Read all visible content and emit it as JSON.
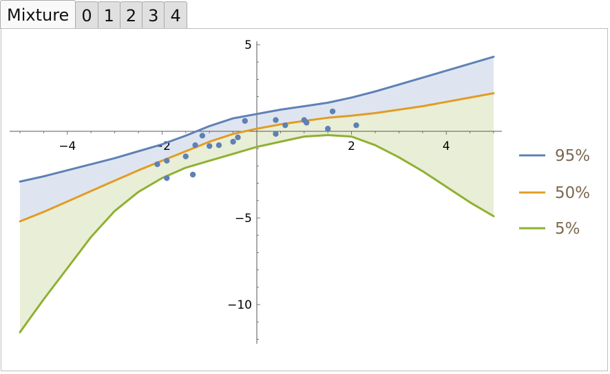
{
  "tabs": [
    {
      "label": "Mixture",
      "active": true
    },
    {
      "label": "0",
      "active": false
    },
    {
      "label": "1",
      "active": false
    },
    {
      "label": "2",
      "active": false
    },
    {
      "label": "3",
      "active": false
    },
    {
      "label": "4",
      "active": false
    }
  ],
  "chart_data": {
    "type": "line",
    "xlim": [
      -5,
      5
    ],
    "ylim": [
      -12,
      5
    ],
    "x_ticks": [
      -4,
      -2,
      2,
      4
    ],
    "y_ticks": [
      5,
      -5,
      -10
    ],
    "x_tick_labels": [
      "−4",
      "−2",
      "2",
      "4"
    ],
    "y_tick_labels": [
      "5",
      "−5",
      "−10"
    ],
    "grid": false,
    "legend_position": "right",
    "x": [
      -5,
      -4.5,
      -4,
      -3.5,
      -3,
      -2.5,
      -2,
      -1.5,
      -1,
      -0.5,
      0,
      0.5,
      1,
      1.5,
      2,
      2.5,
      3,
      3.5,
      4,
      4.5,
      5
    ],
    "series": [
      {
        "name": "95%",
        "color": "#5e81b5",
        "values": [
          -2.9,
          -2.6,
          -2.25,
          -1.9,
          -1.55,
          -1.15,
          -0.75,
          -0.25,
          0.3,
          0.75,
          1.0,
          1.25,
          1.45,
          1.65,
          1.95,
          2.3,
          2.7,
          3.1,
          3.5,
          3.9,
          4.3
        ]
      },
      {
        "name": "50%",
        "color": "#e19c24",
        "values": [
          -5.2,
          -4.65,
          -4.05,
          -3.45,
          -2.85,
          -2.25,
          -1.7,
          -1.15,
          -0.6,
          -0.15,
          0.15,
          0.4,
          0.6,
          0.78,
          0.9,
          1.05,
          1.25,
          1.45,
          1.7,
          1.95,
          2.2
        ]
      },
      {
        "name": "5%",
        "color": "#8fb032",
        "values": [
          -11.6,
          -9.7,
          -7.9,
          -6.1,
          -4.6,
          -3.5,
          -2.7,
          -2.1,
          -1.7,
          -1.3,
          -0.9,
          -0.6,
          -0.3,
          -0.22,
          -0.3,
          -0.8,
          -1.5,
          -2.3,
          -3.2,
          -4.1,
          -4.9
        ]
      }
    ],
    "points": {
      "color": "#5e81b5",
      "values": [
        [
          -2.1,
          -1.9
        ],
        [
          -1.9,
          -1.7
        ],
        [
          -1.9,
          -2.7
        ],
        [
          -1.5,
          -1.45
        ],
        [
          -1.35,
          -2.5
        ],
        [
          -1.3,
          -0.8
        ],
        [
          -1.15,
          -0.25
        ],
        [
          -1.0,
          -0.85
        ],
        [
          -0.8,
          -0.8
        ],
        [
          -0.5,
          -0.6
        ],
        [
          -0.4,
          -0.35
        ],
        [
          -0.25,
          0.6
        ],
        [
          0.4,
          0.65
        ],
        [
          0.4,
          -0.15
        ],
        [
          0.6,
          0.35
        ],
        [
          1.0,
          0.65
        ],
        [
          1.05,
          0.5
        ],
        [
          1.5,
          0.15
        ],
        [
          1.6,
          1.15
        ],
        [
          2.1,
          0.35
        ]
      ]
    },
    "fill_colors": [
      "#dfe5f0",
      "#e9eed6"
    ]
  }
}
